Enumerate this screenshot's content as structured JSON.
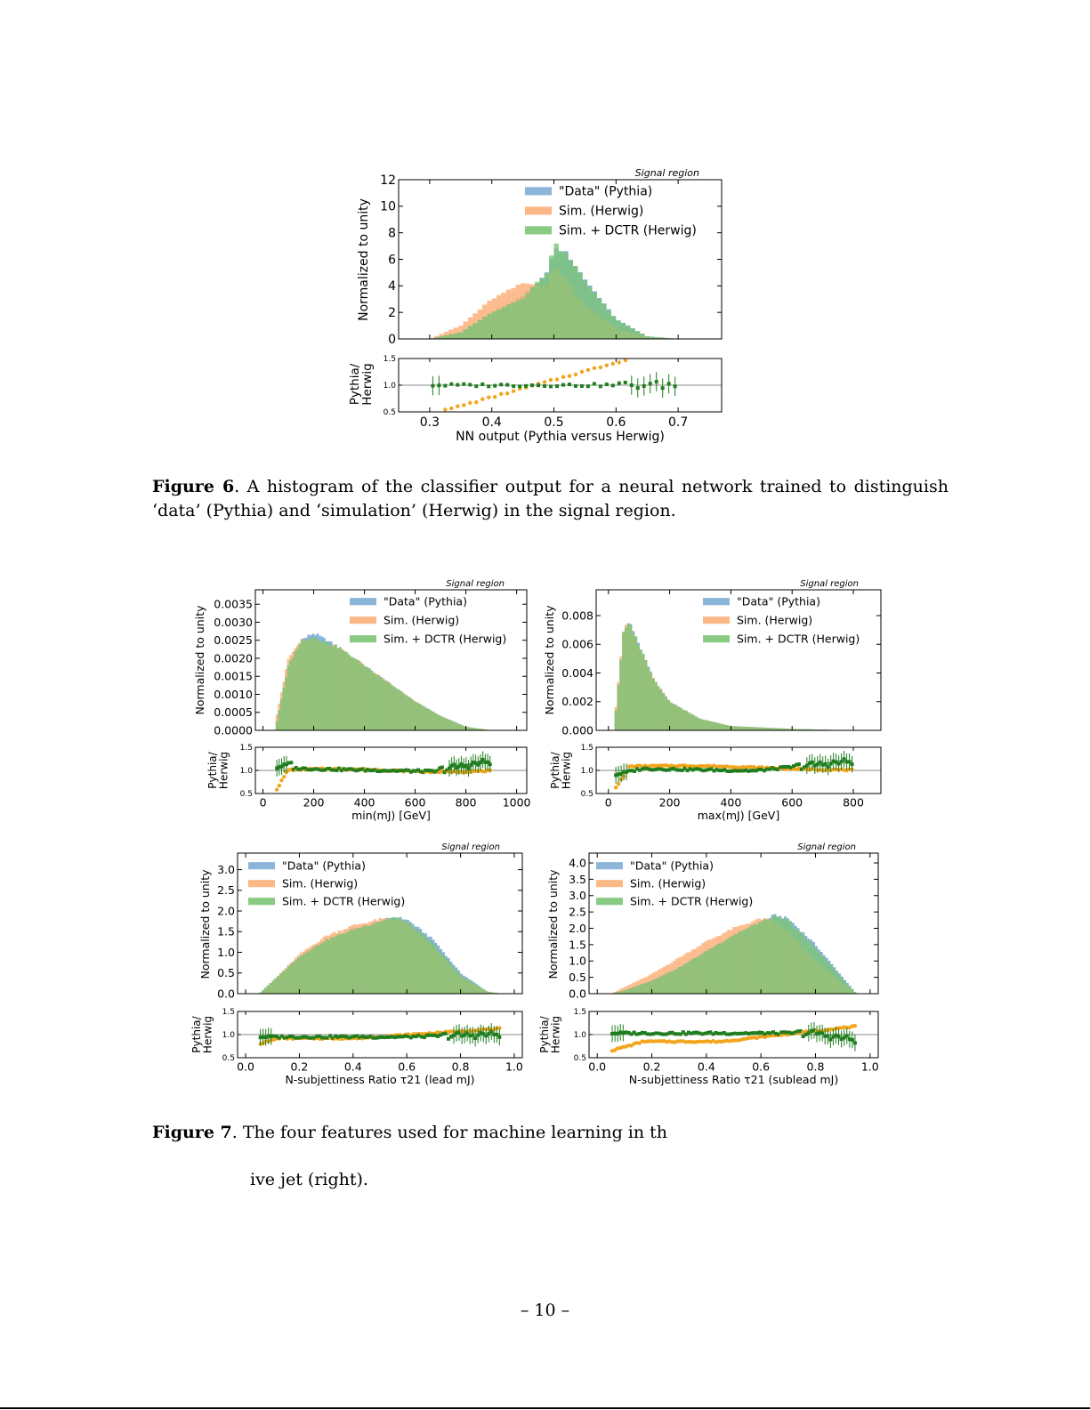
{
  "page_number": "– 10 –",
  "figure6": {
    "label": "Figure 6",
    "caption": ". A histogram of the classifier output for a neural network trained to distinguish ‘data’ (Pythia) and ‘simulation’ (Herwig) in the signal region."
  },
  "figure7": {
    "label": "Figure 7",
    "caption_line1": ". The four features used for machine learning in th",
    "caption_line2": "ive jet (right)."
  },
  "legend": {
    "data": "\"Data\" (Pythia)",
    "sim": "Sim. (Herwig)",
    "dctr": "Sim. + DCTR (Herwig)"
  },
  "colors": {
    "data": "#7fadd6",
    "sim": "#fbb07a",
    "dctr": "#7cc576",
    "dctr_ratio": "#1e7d1e",
    "sim_ratio": "#f2a51c"
  },
  "chart_data": [
    {
      "type": "bar",
      "id": "nn_output",
      "title": "Signal region",
      "xlabel": "NN output (Pythia versus Herwig)",
      "ylabel": "Normalized to unity",
      "ratio_ylabel": "Pythia/ Herwig",
      "xlim": [
        0.25,
        0.77
      ],
      "ylim": [
        0,
        12
      ],
      "xticks": [
        "0.3",
        "0.4",
        "0.5",
        "0.6",
        "0.7"
      ],
      "yticks": [
        "0",
        "2",
        "4",
        "6",
        "8",
        "10",
        "12"
      ],
      "ratio_ylim": [
        0.5,
        1.5
      ],
      "ratio_yticks": [
        "0.5",
        "1.0",
        "1.5"
      ],
      "legend_position": "top-right",
      "series": [
        {
          "name": "\"Data\" (Pythia)",
          "x": [
            0.3,
            0.35,
            0.4,
            0.45,
            0.49,
            0.5,
            0.52,
            0.55,
            0.6,
            0.65,
            0.7
          ],
          "values": [
            0,
            0.5,
            2.0,
            3.2,
            5.0,
            6.8,
            6.5,
            4.5,
            1.5,
            0.2,
            0
          ]
        },
        {
          "name": "Sim. (Herwig)",
          "x": [
            0.3,
            0.35,
            0.4,
            0.45,
            0.49,
            0.5,
            0.52,
            0.55,
            0.6,
            0.65,
            0.7
          ],
          "values": [
            0,
            1.0,
            3.0,
            4.2,
            4.0,
            5.5,
            4.5,
            2.5,
            0.8,
            0.1,
            0
          ]
        },
        {
          "name": "Sim. + DCTR (Herwig)",
          "x": [
            0.3,
            0.35,
            0.4,
            0.45,
            0.49,
            0.5,
            0.52,
            0.55,
            0.6,
            0.65,
            0.7
          ],
          "values": [
            0,
            0.5,
            2.0,
            3.1,
            5.1,
            7.2,
            6.4,
            4.4,
            1.5,
            0.2,
            0
          ]
        }
      ]
    },
    {
      "type": "bar",
      "id": "min_mj",
      "title": "Signal region",
      "xlabel": "min(mJ) [GeV]",
      "ylabel": "Normalized to unity",
      "ratio_ylabel": "Pythia/ Herwig",
      "xlim": [
        -30,
        1040
      ],
      "ylim": [
        0,
        0.0039
      ],
      "xticks": [
        "0",
        "200",
        "400",
        "600",
        "800",
        "1000"
      ],
      "yticks": [
        "0.0000",
        "0.0005",
        "0.0010",
        "0.0015",
        "0.0020",
        "0.0025",
        "0.0030",
        "0.0035"
      ],
      "legend_position": "top-right",
      "series": [
        {
          "name": "\"Data\" (Pythia)",
          "x": [
            50,
            100,
            150,
            200,
            300,
            400,
            500,
            600,
            700,
            800,
            900
          ],
          "values": [
            0.0001,
            0.0018,
            0.0025,
            0.0027,
            0.0023,
            0.0018,
            0.0013,
            0.0008,
            0.0004,
            0.0001,
            0
          ]
        },
        {
          "name": "Sim. (Herwig)",
          "x": [
            50,
            100,
            150,
            200,
            300,
            400,
            500,
            600,
            700,
            800,
            900
          ],
          "values": [
            0.0003,
            0.002,
            0.0025,
            0.0025,
            0.0023,
            0.0018,
            0.0013,
            0.0008,
            0.0004,
            0.0001,
            0
          ]
        },
        {
          "name": "Sim. + DCTR (Herwig)",
          "x": [
            50,
            100,
            150,
            200,
            300,
            400,
            500,
            600,
            700,
            800,
            900
          ],
          "values": [
            0.0001,
            0.0018,
            0.0025,
            0.0026,
            0.0023,
            0.0018,
            0.0013,
            0.0008,
            0.0004,
            0.0001,
            0
          ]
        }
      ]
    },
    {
      "type": "bar",
      "id": "max_mj",
      "title": "Signal region",
      "xlabel": "max(mJ) [GeV]",
      "ylabel": "Normalized to unity",
      "ratio_ylabel": "Pythia/ Herwig",
      "xlim": [
        -40,
        890
      ],
      "ylim": [
        0,
        0.0098
      ],
      "xticks": [
        "0",
        "200",
        "400",
        "600",
        "800"
      ],
      "yticks": [
        "0.000",
        "0.002",
        "0.004",
        "0.006",
        "0.008"
      ],
      "legend_position": "top-right",
      "series": [
        {
          "name": "\"Data\" (Pythia)",
          "x": [
            20,
            50,
            70,
            100,
            150,
            200,
            300,
            400,
            600,
            800
          ],
          "values": [
            0.0005,
            0.007,
            0.0075,
            0.006,
            0.0035,
            0.002,
            0.0008,
            0.0003,
            0.0001,
            0
          ]
        },
        {
          "name": "Sim. (Herwig)",
          "x": [
            20,
            50,
            70,
            100,
            150,
            200,
            300,
            400,
            600,
            800
          ],
          "values": [
            0.0008,
            0.0072,
            0.0073,
            0.0058,
            0.0035,
            0.002,
            0.0008,
            0.0003,
            0.0001,
            0
          ]
        },
        {
          "name": "Sim. + DCTR (Herwig)",
          "x": [
            20,
            50,
            70,
            100,
            150,
            200,
            300,
            400,
            600,
            800
          ],
          "values": [
            0.0005,
            0.007,
            0.0074,
            0.006,
            0.0035,
            0.002,
            0.0008,
            0.0003,
            0.0001,
            0
          ]
        }
      ]
    },
    {
      "type": "bar",
      "id": "tau21_lead",
      "title": "Signal region",
      "xlabel": "N-subjettiness Ratio τ21 (lead mJ)",
      "ylabel": "Normalized to unity",
      "ratio_ylabel": "Pythia/ Herwig",
      "xlim": [
        -0.03,
        1.03
      ],
      "ylim": [
        0,
        3.4
      ],
      "xticks": [
        "0.0",
        "0.2",
        "0.4",
        "0.6",
        "0.8",
        "1.0"
      ],
      "yticks": [
        "0.0",
        "0.5",
        "1.0",
        "1.5",
        "2.0",
        "2.5",
        "3.0"
      ],
      "legend_position": "top-left",
      "series": [
        {
          "name": "\"Data\" (Pythia)",
          "x": [
            0.05,
            0.1,
            0.2,
            0.3,
            0.4,
            0.5,
            0.55,
            0.6,
            0.7,
            0.8,
            0.9,
            0.95
          ],
          "values": [
            0,
            0.3,
            0.9,
            1.3,
            1.55,
            1.75,
            1.85,
            1.8,
            1.3,
            0.5,
            0.05,
            0
          ]
        },
        {
          "name": "Sim. (Herwig)",
          "x": [
            0.05,
            0.1,
            0.2,
            0.3,
            0.4,
            0.5,
            0.55,
            0.6,
            0.7,
            0.8,
            0.9,
            0.95
          ],
          "values": [
            0,
            0.3,
            0.95,
            1.4,
            1.65,
            1.8,
            1.8,
            1.7,
            1.1,
            0.4,
            0.05,
            0
          ]
        },
        {
          "name": "Sim. + DCTR (Herwig)",
          "x": [
            0.05,
            0.1,
            0.2,
            0.3,
            0.4,
            0.5,
            0.55,
            0.6,
            0.7,
            0.8,
            0.9,
            0.95
          ],
          "values": [
            0,
            0.3,
            0.9,
            1.3,
            1.55,
            1.75,
            1.85,
            1.75,
            1.2,
            0.45,
            0.05,
            0
          ]
        }
      ]
    },
    {
      "type": "bar",
      "id": "tau21_sublead",
      "title": "Signal region",
      "xlabel": "N-subjettiness Ratio τ21 (sublead mJ)",
      "ylabel": "Normalized to unity",
      "ratio_ylabel": "Pythia/ Herwig",
      "xlim": [
        -0.03,
        1.03
      ],
      "ylim": [
        0,
        4.3
      ],
      "xticks": [
        "0.0",
        "0.2",
        "0.4",
        "0.6",
        "0.8",
        "1.0"
      ],
      "yticks": [
        "0.0",
        "0.5",
        "1.0",
        "1.5",
        "2.0",
        "2.5",
        "3.0",
        "3.5",
        "4.0"
      ],
      "legend_position": "top-left",
      "series": [
        {
          "name": "\"Data\" (Pythia)",
          "x": [
            0.05,
            0.1,
            0.2,
            0.3,
            0.4,
            0.5,
            0.6,
            0.65,
            0.7,
            0.8,
            0.9,
            0.95
          ],
          "values": [
            0,
            0.1,
            0.4,
            0.8,
            1.3,
            1.8,
            2.2,
            2.4,
            2.3,
            1.5,
            0.5,
            0
          ]
        },
        {
          "name": "Sim. (Herwig)",
          "x": [
            0.05,
            0.1,
            0.2,
            0.3,
            0.4,
            0.5,
            0.6,
            0.65,
            0.7,
            0.8,
            0.9,
            0.95
          ],
          "values": [
            0,
            0.2,
            0.6,
            1.1,
            1.6,
            2.0,
            2.3,
            2.2,
            1.9,
            1.0,
            0.3,
            0
          ]
        },
        {
          "name": "Sim. + DCTR (Herwig)",
          "x": [
            0.05,
            0.1,
            0.2,
            0.3,
            0.4,
            0.5,
            0.6,
            0.65,
            0.7,
            0.8,
            0.9,
            0.95
          ],
          "values": [
            0,
            0.1,
            0.4,
            0.8,
            1.3,
            1.8,
            2.2,
            2.35,
            2.25,
            1.4,
            0.45,
            0
          ]
        }
      ]
    }
  ]
}
